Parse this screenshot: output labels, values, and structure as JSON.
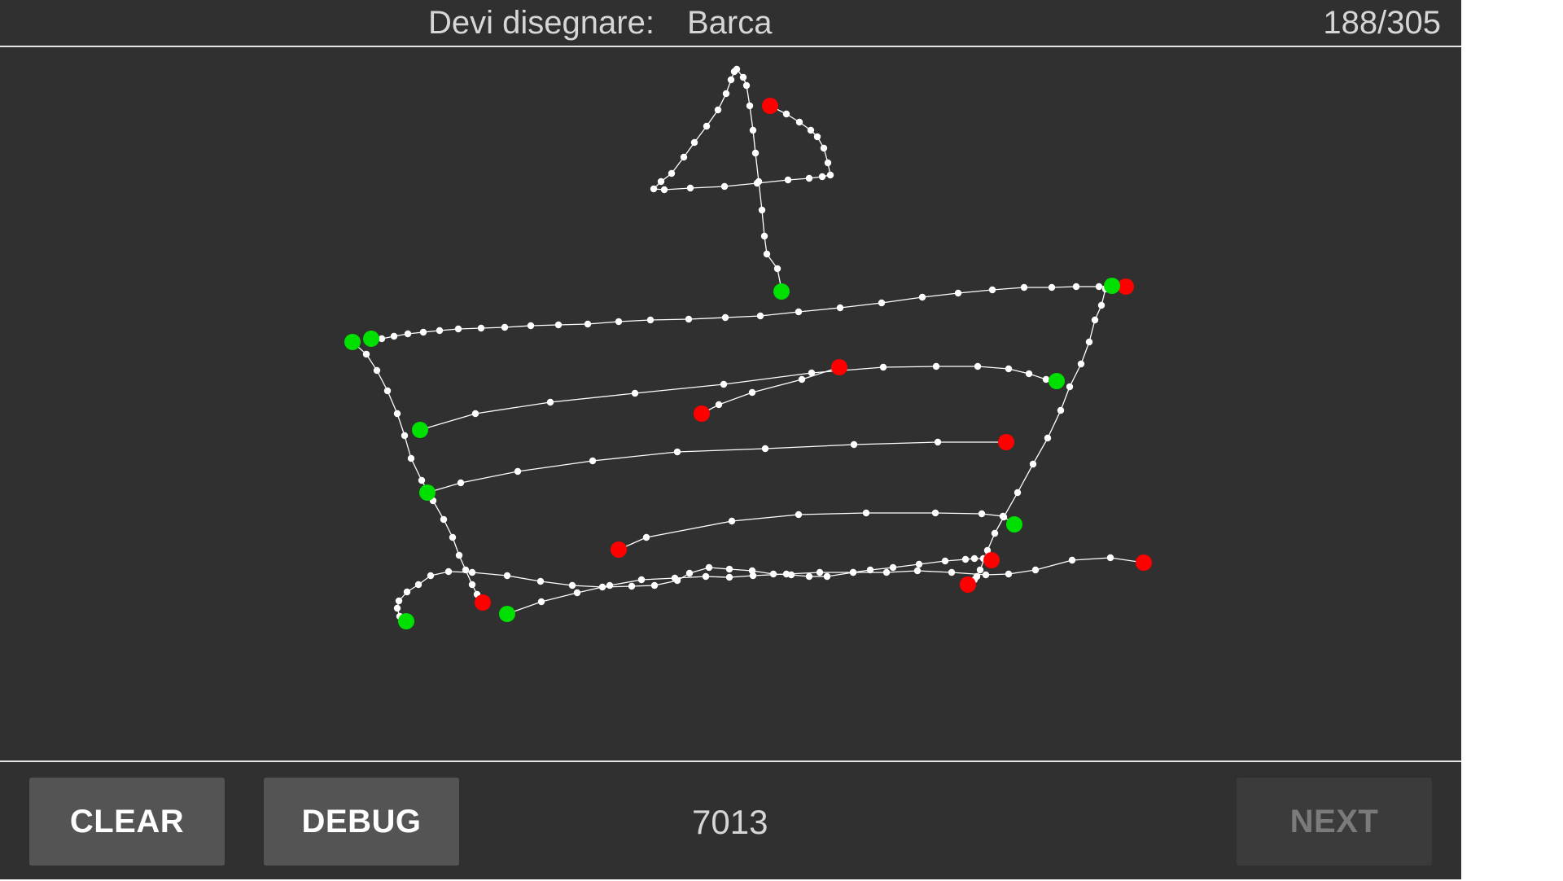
{
  "header": {
    "prompt_label": "Devi disegnare:",
    "prompt_word": "Barca",
    "progress": "188/305"
  },
  "footer": {
    "clear_label": "CLEAR",
    "debug_label": "DEBUG",
    "score": "7013",
    "next_label": "NEXT"
  },
  "colors": {
    "background": "#303030",
    "stroke": "#ffffff",
    "stroke_start": "#00e000",
    "stroke_end": "#ff0000"
  }
}
